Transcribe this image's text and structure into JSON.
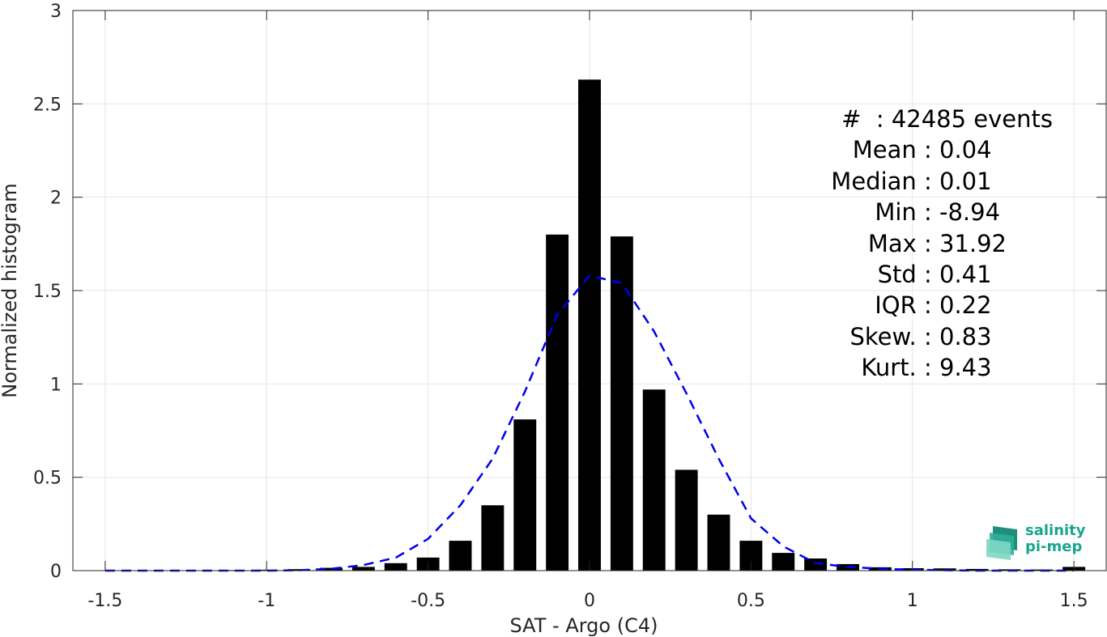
{
  "chart_data": {
    "type": "bar",
    "xlabel": "SAT - Argo (C4)",
    "ylabel": "Normalized histogram",
    "xlim": [
      -1.6,
      1.6
    ],
    "ylim": [
      0,
      3
    ],
    "xticks": [
      -1.5,
      -1,
      -0.5,
      0,
      0.5,
      1,
      1.5
    ],
    "xtick_labels": [
      "-1.5",
      "-1",
      "-0.5",
      "0",
      "0.5",
      "1",
      "1.5"
    ],
    "yticks": [
      0,
      0.5,
      1,
      1.5,
      2,
      2.5,
      3
    ],
    "ytick_labels": [
      "0",
      "0.5",
      "1",
      "1.5",
      "2",
      "2.5",
      "3"
    ],
    "grid": true,
    "bar_width": 0.07,
    "series": [
      {
        "kind": "bar",
        "color": "#000000",
        "x": [
          -1.5,
          -1.4,
          -1.3,
          -1.2,
          -1.1,
          -1.0,
          -0.9,
          -0.8,
          -0.7,
          -0.6,
          -0.5,
          -0.4,
          -0.3,
          -0.2,
          -0.1,
          0.0,
          0.1,
          0.2,
          0.3,
          0.4,
          0.5,
          0.6,
          0.7,
          0.8,
          0.9,
          1.0,
          1.1,
          1.2,
          1.3,
          1.4,
          1.5
        ],
        "values": [
          0.002,
          0.002,
          0.002,
          0.002,
          0.003,
          0.005,
          0.008,
          0.015,
          0.02,
          0.04,
          0.07,
          0.16,
          0.35,
          0.81,
          1.8,
          2.63,
          1.79,
          0.97,
          0.54,
          0.3,
          0.16,
          0.095,
          0.065,
          0.035,
          0.018,
          0.013,
          0.012,
          0.009,
          0.007,
          0.006,
          0.02
        ]
      },
      {
        "kind": "line",
        "style": "dashed",
        "color": "#0000ee",
        "x": [
          -1.5,
          -1.4,
          -1.3,
          -1.2,
          -1.1,
          -1.0,
          -0.9,
          -0.8,
          -0.7,
          -0.6,
          -0.5,
          -0.4,
          -0.3,
          -0.2,
          -0.1,
          0.0,
          0.1,
          0.2,
          0.3,
          0.4,
          0.5,
          0.6,
          0.7,
          0.8,
          0.9,
          1.0,
          1.1,
          1.2,
          1.3,
          1.4,
          1.5
        ],
        "values": [
          0.0,
          0.0,
          0.0,
          0.0,
          0.0,
          0.0,
          0.002,
          0.01,
          0.03,
          0.07,
          0.17,
          0.35,
          0.6,
          0.96,
          1.37,
          1.58,
          1.54,
          1.28,
          0.95,
          0.6,
          0.28,
          0.13,
          0.04,
          0.02,
          0.01,
          0.005,
          0.002,
          0.0,
          0.0,
          0.0,
          0.0
        ]
      }
    ]
  },
  "stats": [
    {
      "key": "#  ",
      "value": ": 42485 events"
    },
    {
      "key": "Mean ",
      "value": ": 0.04"
    },
    {
      "key": "Median ",
      "value": ": 0.01"
    },
    {
      "key": "Min ",
      "value": ": -8.94"
    },
    {
      "key": "Max ",
      "value": ": 31.92"
    },
    {
      "key": "Std ",
      "value": ": 0.41"
    },
    {
      "key": "IQR ",
      "value": ": 0.22"
    },
    {
      "key": "Skew. ",
      "value": ": 0.83"
    },
    {
      "key": "Kurt. ",
      "value": ": 9.43"
    }
  ],
  "logo": {
    "line1": "salinity",
    "line2": "pi-mep"
  }
}
